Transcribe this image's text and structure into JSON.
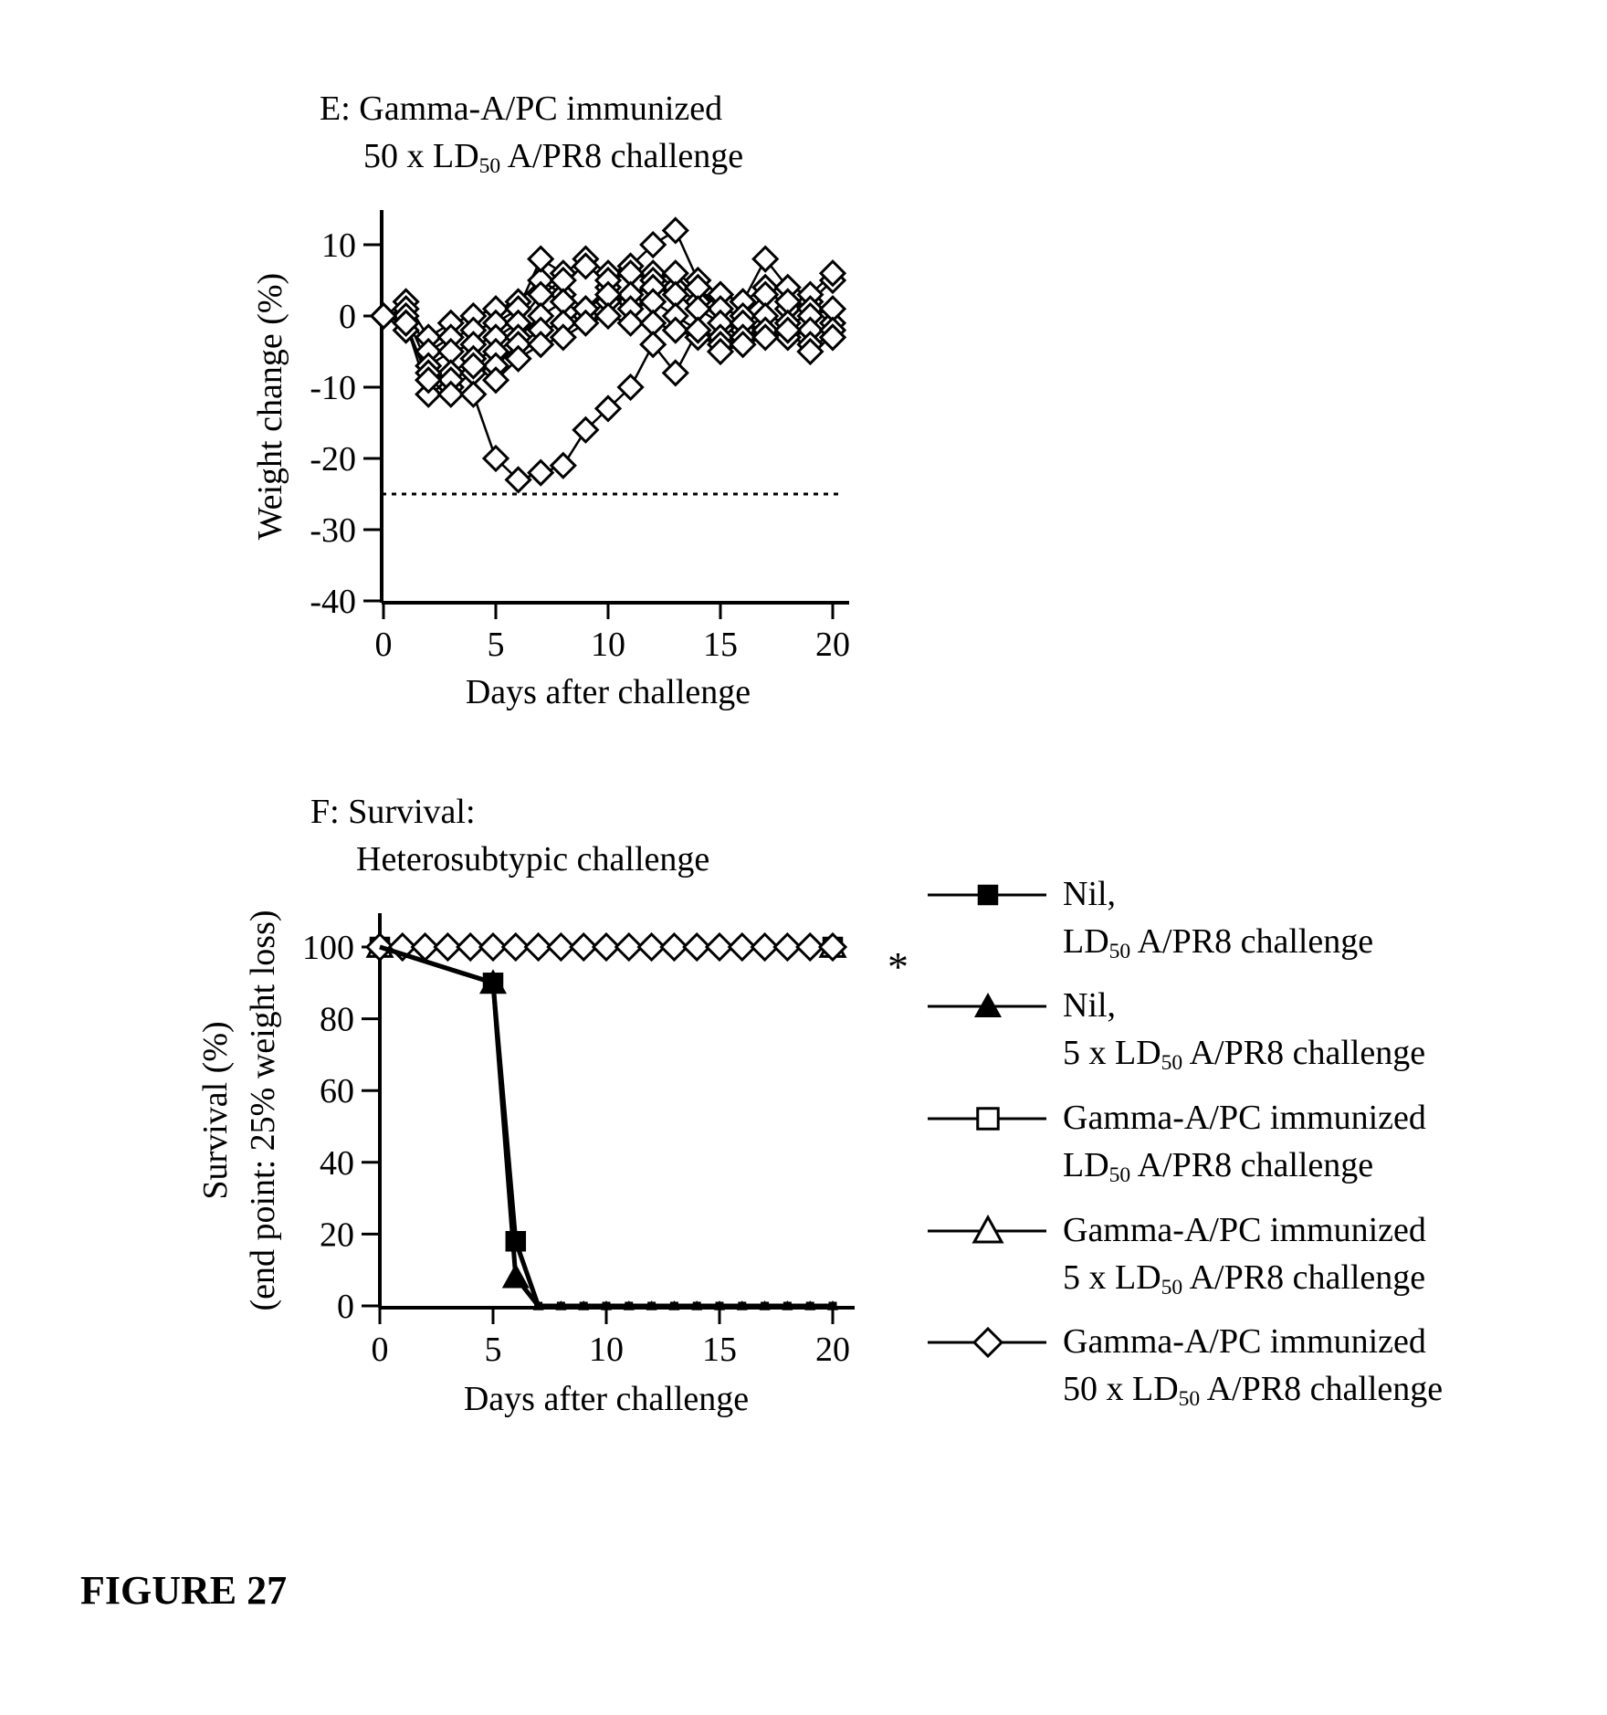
{
  "figure": {
    "label": "FIGURE 27"
  },
  "panel_e": {
    "title_line1": "E: Gamma-A/PC immunized",
    "title_line2_pre": "50 x LD",
    "title_line2_sub": "50",
    "title_line2_post": " A/PR8 challenge"
  },
  "panel_f": {
    "title_line1": "F: Survival:",
    "title_line2": "Heterosubtypic challenge",
    "significance_mark": "*"
  },
  "legend": {
    "items": [
      {
        "line1": "Nil,",
        "line2_pre": "",
        "line2_sub": "",
        "line2_post": "",
        "line2_ld": "LD",
        "line2_ldsub": "50",
        "line2_rest": " A/PR8 challenge",
        "marker": "filled-square"
      },
      {
        "line1": "Nil,",
        "line2_ld": "5 x LD",
        "line2_ldsub": "50",
        "line2_rest": " A/PR8 challenge",
        "marker": "filled-triangle"
      },
      {
        "line1": "Gamma-A/PC immunized",
        "line2_ld": "LD",
        "line2_ldsub": "50",
        "line2_rest": " A/PR8 challenge",
        "marker": "open-square"
      },
      {
        "line1": "Gamma-A/PC immunized",
        "line2_ld": "5 x LD",
        "line2_ldsub": "50",
        "line2_rest": " A/PR8 challenge",
        "marker": "open-triangle"
      },
      {
        "line1": "Gamma-A/PC immunized",
        "line2_ld": "50 x LD",
        "line2_ldsub": "50",
        "line2_rest": " A/PR8 challenge",
        "marker": "open-diamond"
      }
    ]
  },
  "chart_data": [
    {
      "type": "line",
      "panel": "E",
      "xlabel": "Days after challenge",
      "ylabel": "Weight change (%)",
      "xlim": [
        0,
        20
      ],
      "ylim": [
        -40,
        10
      ],
      "xticks": [
        0,
        5,
        10,
        15,
        20
      ],
      "yticks": [
        10,
        0,
        -10,
        -20,
        -30,
        -40
      ],
      "threshold": -25,
      "marker": "open-diamond",
      "series": [
        {
          "x": [
            0,
            1,
            2,
            3,
            4,
            5,
            6,
            7,
            8,
            9,
            10,
            11,
            12,
            13,
            14,
            15,
            16,
            17,
            18,
            19,
            20
          ],
          "values": [
            0,
            2,
            -3,
            -1,
            0,
            1,
            2,
            5,
            3,
            1,
            4,
            2,
            6,
            4,
            2,
            3,
            2,
            4,
            1,
            2,
            5
          ]
        },
        {
          "x": [
            0,
            1,
            2,
            3,
            4,
            5,
            6,
            7,
            8,
            9,
            10,
            11,
            12,
            13,
            14,
            15,
            16,
            17,
            18,
            19,
            20
          ],
          "values": [
            0,
            1,
            -5,
            -3,
            -2,
            -1,
            1,
            8,
            6,
            8,
            6,
            7,
            10,
            12,
            5,
            3,
            2,
            8,
            4,
            3,
            6
          ]
        },
        {
          "x": [
            0,
            1,
            2,
            3,
            4,
            5,
            6,
            7,
            8,
            9,
            10,
            11,
            12,
            13,
            14,
            15,
            16,
            17,
            18,
            19,
            20
          ],
          "values": [
            0,
            0,
            -7,
            -5,
            -4,
            -3,
            -1,
            3,
            5,
            7,
            5,
            6,
            5,
            6,
            4,
            1,
            0,
            3,
            2,
            1,
            -1
          ]
        },
        {
          "x": [
            0,
            1,
            2,
            3,
            4,
            5,
            6,
            7,
            8,
            9,
            10,
            11,
            12,
            13,
            14,
            15,
            16,
            17,
            18,
            19,
            20
          ],
          "values": [
            0,
            -1,
            -9,
            -8,
            -6,
            -5,
            -3,
            0,
            2,
            0,
            2,
            3,
            4,
            3,
            1,
            -1,
            -2,
            0,
            -1,
            0,
            1
          ]
        },
        {
          "x": [
            0,
            1,
            2,
            3,
            4,
            5,
            6,
            7,
            8,
            9,
            10,
            11,
            12,
            13,
            14,
            15,
            16,
            17,
            18,
            19,
            20
          ],
          "values": [
            0,
            -2,
            -8,
            -10,
            -8,
            -7,
            -4,
            -2,
            -1,
            1,
            3,
            1,
            2,
            0,
            -2,
            -3,
            -1,
            -2,
            -3,
            -2,
            -2
          ]
        },
        {
          "x": [
            0,
            1,
            2,
            3,
            4,
            5,
            6,
            7,
            8,
            9,
            10,
            11,
            12,
            13,
            14,
            15,
            16,
            17,
            18,
            19,
            20
          ],
          "values": [
            0,
            -1,
            -11,
            -9,
            -7,
            -9,
            -6,
            -4,
            -3,
            -1,
            0,
            -1,
            -1,
            -2,
            -3,
            -4,
            -3,
            -2,
            -3,
            -4,
            -3
          ]
        },
        {
          "x": [
            0,
            1,
            2,
            3,
            4,
            5,
            6,
            7,
            8,
            9,
            10,
            11,
            12,
            13,
            14,
            15,
            16,
            17,
            18,
            19,
            20
          ],
          "values": [
            0,
            -1,
            -9,
            -11,
            -11,
            -20,
            -23,
            -22,
            -21,
            -16,
            -13,
            -10,
            -4,
            -8,
            -2,
            -5,
            -4,
            -3,
            -2,
            -5,
            -3
          ]
        }
      ]
    },
    {
      "type": "line",
      "panel": "F",
      "xlabel": "Days after challenge",
      "ylabel_line1": "Survival (%)",
      "ylabel_line2": "(end point: 25% weight loss)",
      "xlim": [
        0,
        20
      ],
      "ylim": [
        0,
        100
      ],
      "xticks": [
        0,
        5,
        10,
        15,
        20
      ],
      "yticks": [
        100,
        80,
        60,
        40,
        20,
        0
      ],
      "series": [
        {
          "name": "Nil, LD50 A/PR8 challenge",
          "marker": "filled-square",
          "x": [
            0,
            5,
            6,
            7,
            8,
            9,
            10,
            11,
            12,
            13,
            14,
            15,
            16,
            17,
            18,
            19,
            20
          ],
          "values": [
            100,
            90,
            18,
            0,
            0,
            0,
            0,
            0,
            0,
            0,
            0,
            0,
            0,
            0,
            0,
            0,
            0
          ]
        },
        {
          "name": "Nil, 5 x LD50 A/PR8 challenge",
          "marker": "filled-triangle",
          "x": [
            0,
            5,
            6,
            7,
            8,
            9,
            10,
            11,
            12,
            13,
            14,
            15,
            16,
            17,
            18,
            19,
            20
          ],
          "values": [
            100,
            90,
            8,
            0,
            0,
            0,
            0,
            0,
            0,
            0,
            0,
            0,
            0,
            0,
            0,
            0,
            0
          ]
        },
        {
          "name": "Gamma-A/PC immunized LD50 A/PR8 challenge",
          "marker": "open-square",
          "x": [
            0,
            20
          ],
          "values": [
            100,
            100
          ]
        },
        {
          "name": "Gamma-A/PC immunized 5 x LD50 A/PR8 challenge",
          "marker": "open-triangle",
          "x": [
            0,
            20
          ],
          "values": [
            100,
            100
          ]
        },
        {
          "name": "Gamma-A/PC immunized 50 x LD50 A/PR8 challenge",
          "marker": "open-diamond",
          "x": [
            0,
            1,
            2,
            3,
            4,
            5,
            6,
            7,
            8,
            9,
            10,
            11,
            12,
            13,
            14,
            15,
            16,
            17,
            18,
            19,
            20
          ],
          "values": [
            100,
            100,
            100,
            100,
            100,
            100,
            100,
            100,
            100,
            100,
            100,
            100,
            100,
            100,
            100,
            100,
            100,
            100,
            100,
            100,
            100
          ]
        }
      ]
    }
  ]
}
